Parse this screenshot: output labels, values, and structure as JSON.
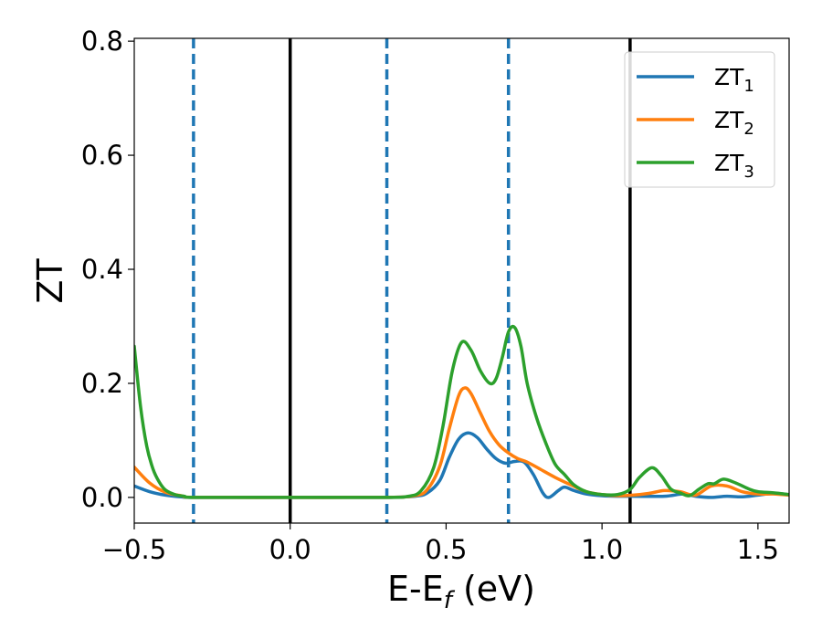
{
  "chart_data": {
    "type": "line",
    "xlabel": "E-E",
    "xlabel_sub": "f",
    "xlabel_unit": " (eV)",
    "ylabel": "ZT",
    "xlim": [
      -0.5,
      1.6
    ],
    "ylim": [
      -0.045,
      0.805
    ],
    "x_ticks": [
      {
        "value": -0.5,
        "label": "−0.5"
      },
      {
        "value": 0.0,
        "label": "0.0"
      },
      {
        "value": 0.5,
        "label": "0.5"
      },
      {
        "value": 1.0,
        "label": "1.0"
      },
      {
        "value": 1.5,
        "label": "1.5"
      }
    ],
    "y_ticks": [
      {
        "value": 0.0,
        "label": "0.0"
      },
      {
        "value": 0.2,
        "label": "0.2"
      },
      {
        "value": 0.4,
        "label": "0.4"
      },
      {
        "value": 0.6,
        "label": "0.6"
      },
      {
        "value": 0.8,
        "label": "0.8"
      }
    ],
    "grid": false,
    "legend_position": "top-right",
    "vlines": [
      {
        "x": 0.0,
        "style": "solid",
        "color": "#000000"
      },
      {
        "x": 1.09,
        "style": "solid",
        "color": "#000000"
      },
      {
        "x": -0.31,
        "style": "dashed",
        "color": "#1f77b4"
      },
      {
        "x": 0.31,
        "style": "dashed",
        "color": "#1f77b4"
      },
      {
        "x": 0.7,
        "style": "dashed",
        "color": "#1f77b4"
      }
    ],
    "series": [
      {
        "name": "ZT",
        "name_sub": "1",
        "color": "#1f77b4",
        "points": [
          [
            -0.5,
            0.02
          ],
          [
            -0.45,
            0.01
          ],
          [
            -0.4,
            0.004
          ],
          [
            -0.35,
            0.001
          ],
          [
            -0.3,
            0.0
          ],
          [
            0.0,
            0.0
          ],
          [
            0.3,
            0.0
          ],
          [
            0.4,
            0.002
          ],
          [
            0.44,
            0.008
          ],
          [
            0.48,
            0.03
          ],
          [
            0.51,
            0.07
          ],
          [
            0.54,
            0.102
          ],
          [
            0.57,
            0.113
          ],
          [
            0.6,
            0.105
          ],
          [
            0.63,
            0.085
          ],
          [
            0.66,
            0.068
          ],
          [
            0.69,
            0.06
          ],
          [
            0.72,
            0.063
          ],
          [
            0.75,
            0.062
          ],
          [
            0.78,
            0.04
          ],
          [
            0.81,
            0.008
          ],
          [
            0.83,
            0.0
          ],
          [
            0.86,
            0.012
          ],
          [
            0.88,
            0.018
          ],
          [
            0.91,
            0.012
          ],
          [
            0.95,
            0.006
          ],
          [
            1.0,
            0.003
          ],
          [
            1.05,
            0.002
          ],
          [
            1.1,
            0.002
          ],
          [
            1.2,
            0.002
          ],
          [
            1.26,
            0.006
          ],
          [
            1.3,
            0.002
          ],
          [
            1.35,
            0.0
          ],
          [
            1.4,
            0.002
          ],
          [
            1.45,
            0.001
          ],
          [
            1.5,
            0.004
          ],
          [
            1.55,
            0.007
          ],
          [
            1.6,
            0.005
          ]
        ]
      },
      {
        "name": "ZT",
        "name_sub": "2",
        "color": "#ff7f0e",
        "points": [
          [
            -0.5,
            0.053
          ],
          [
            -0.45,
            0.025
          ],
          [
            -0.4,
            0.009
          ],
          [
            -0.35,
            0.003
          ],
          [
            -0.3,
            0.0
          ],
          [
            0.0,
            0.0
          ],
          [
            0.3,
            0.0
          ],
          [
            0.4,
            0.003
          ],
          [
            0.44,
            0.014
          ],
          [
            0.48,
            0.055
          ],
          [
            0.51,
            0.12
          ],
          [
            0.54,
            0.178
          ],
          [
            0.56,
            0.192
          ],
          [
            0.58,
            0.182
          ],
          [
            0.61,
            0.148
          ],
          [
            0.64,
            0.115
          ],
          [
            0.67,
            0.092
          ],
          [
            0.7,
            0.078
          ],
          [
            0.73,
            0.068
          ],
          [
            0.76,
            0.062
          ],
          [
            0.8,
            0.05
          ],
          [
            0.85,
            0.035
          ],
          [
            0.9,
            0.022
          ],
          [
            0.95,
            0.01
          ],
          [
            1.0,
            0.005
          ],
          [
            1.05,
            0.003
          ],
          [
            1.1,
            0.004
          ],
          [
            1.15,
            0.007
          ],
          [
            1.2,
            0.012
          ],
          [
            1.25,
            0.01
          ],
          [
            1.3,
            0.004
          ],
          [
            1.35,
            0.02
          ],
          [
            1.4,
            0.02
          ],
          [
            1.45,
            0.01
          ],
          [
            1.5,
            0.006
          ],
          [
            1.55,
            0.006
          ],
          [
            1.6,
            0.004
          ]
        ]
      },
      {
        "name": "ZT",
        "name_sub": "3",
        "color": "#2ca02c",
        "points": [
          [
            -0.5,
            0.265
          ],
          [
            -0.48,
            0.16
          ],
          [
            -0.46,
            0.09
          ],
          [
            -0.44,
            0.05
          ],
          [
            -0.42,
            0.027
          ],
          [
            -0.4,
            0.013
          ],
          [
            -0.37,
            0.005
          ],
          [
            -0.34,
            0.002
          ],
          [
            -0.3,
            0.0
          ],
          [
            0.0,
            0.0
          ],
          [
            0.3,
            0.0
          ],
          [
            0.38,
            0.002
          ],
          [
            0.42,
            0.012
          ],
          [
            0.46,
            0.052
          ],
          [
            0.49,
            0.125
          ],
          [
            0.52,
            0.222
          ],
          [
            0.55,
            0.272
          ],
          [
            0.58,
            0.258
          ],
          [
            0.61,
            0.222
          ],
          [
            0.64,
            0.2
          ],
          [
            0.66,
            0.208
          ],
          [
            0.68,
            0.245
          ],
          [
            0.7,
            0.29
          ],
          [
            0.72,
            0.298
          ],
          [
            0.74,
            0.265
          ],
          [
            0.76,
            0.2
          ],
          [
            0.79,
            0.14
          ],
          [
            0.82,
            0.095
          ],
          [
            0.85,
            0.058
          ],
          [
            0.88,
            0.04
          ],
          [
            0.91,
            0.022
          ],
          [
            0.95,
            0.01
          ],
          [
            1.0,
            0.005
          ],
          [
            1.05,
            0.005
          ],
          [
            1.09,
            0.014
          ],
          [
            1.12,
            0.035
          ],
          [
            1.16,
            0.052
          ],
          [
            1.19,
            0.038
          ],
          [
            1.22,
            0.015
          ],
          [
            1.25,
            0.008
          ],
          [
            1.28,
            0.003
          ],
          [
            1.31,
            0.014
          ],
          [
            1.34,
            0.024
          ],
          [
            1.36,
            0.024
          ],
          [
            1.39,
            0.032
          ],
          [
            1.43,
            0.025
          ],
          [
            1.47,
            0.015
          ],
          [
            1.5,
            0.01
          ],
          [
            1.55,
            0.008
          ],
          [
            1.6,
            0.005
          ]
        ]
      }
    ]
  }
}
